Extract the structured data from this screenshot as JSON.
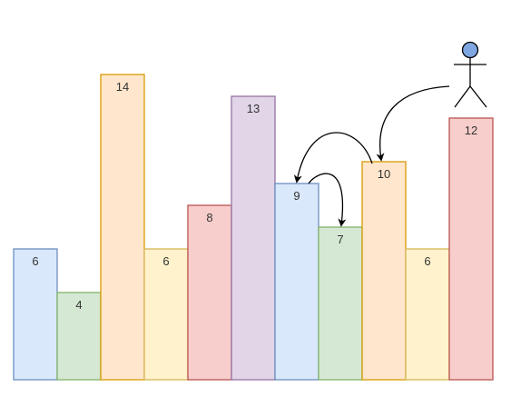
{
  "diagram": {
    "bars": [
      {
        "label": "6",
        "value": 6,
        "fill": "#dae8fc",
        "stroke": "#6c8ebf"
      },
      {
        "label": "4",
        "value": 4,
        "fill": "#d5e8d4",
        "stroke": "#82b366"
      },
      {
        "label": "14",
        "value": 14,
        "fill": "#ffe6cc",
        "stroke": "#d79b00"
      },
      {
        "label": "6",
        "value": 6,
        "fill": "#fff2cc",
        "stroke": "#d6b656"
      },
      {
        "label": "8",
        "value": 8,
        "fill": "#f8cecc",
        "stroke": "#b85450"
      },
      {
        "label": "13",
        "value": 13,
        "fill": "#e1d5e7",
        "stroke": "#9673a6"
      },
      {
        "label": "9",
        "value": 9,
        "fill": "#dae8fc",
        "stroke": "#6c8ebf"
      },
      {
        "label": "7",
        "value": 7,
        "fill": "#d5e8d4",
        "stroke": "#82b366"
      },
      {
        "label": "10",
        "value": 10,
        "fill": "#ffe6cc",
        "stroke": "#d79b00"
      },
      {
        "label": "6",
        "value": 6,
        "fill": "#fff2cc",
        "stroke": "#d6b656"
      },
      {
        "label": "12",
        "value": 12,
        "fill": "#f8cecc",
        "stroke": "#b85450"
      }
    ],
    "person": {
      "head_fill": "#7ea6e0",
      "head_stroke": "#000000"
    },
    "arrow_color": "#000000"
  }
}
